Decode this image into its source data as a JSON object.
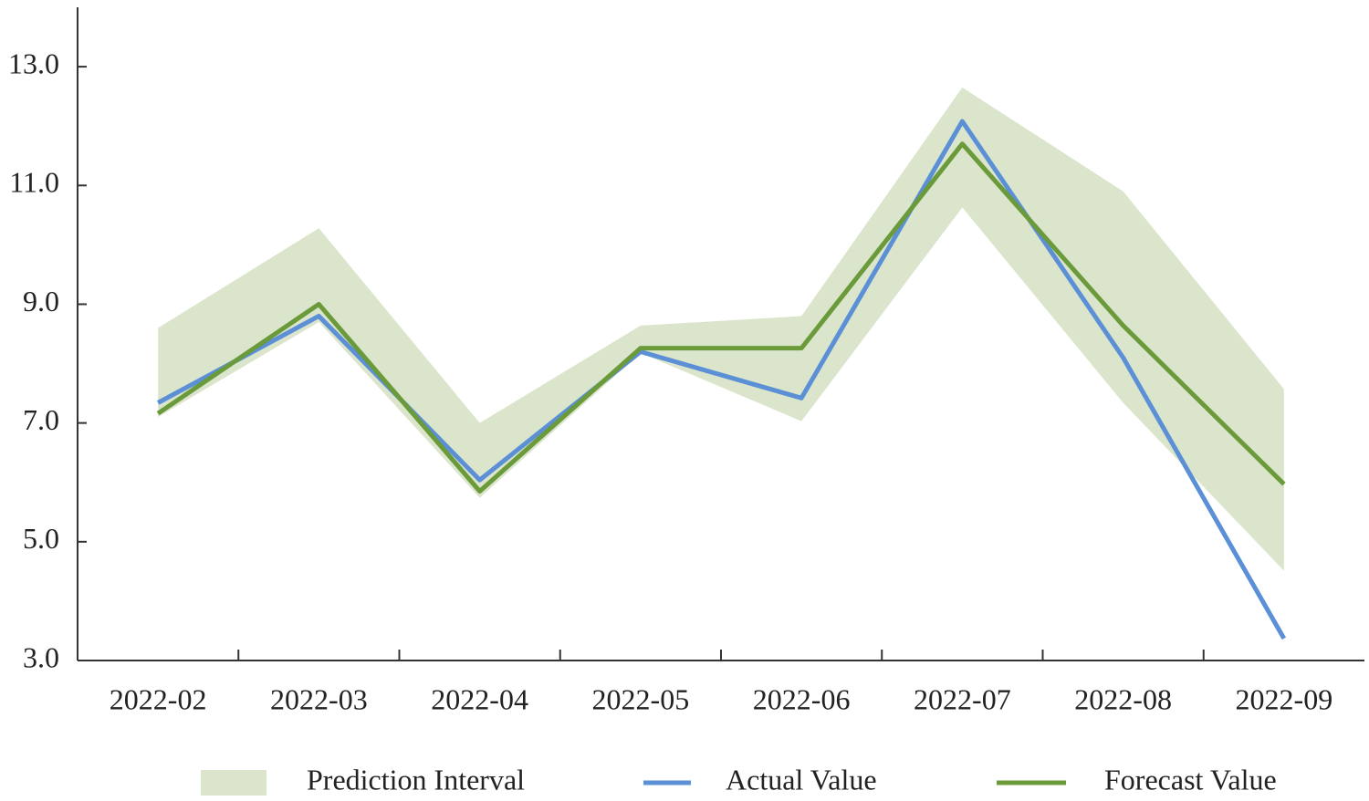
{
  "chart_data": {
    "type": "line",
    "categories": [
      "2022-02",
      "2022-03",
      "2022-04",
      "2022-05",
      "2022-06",
      "2022-07",
      "2022-08",
      "2022-09"
    ],
    "interval": {
      "name": "Prediction Interval",
      "color": "#dbe5cc",
      "lower": [
        7.1,
        8.7,
        5.74,
        8.18,
        7.03,
        10.63,
        7.34,
        4.51
      ],
      "upper": [
        8.6,
        10.28,
        7.0,
        8.64,
        8.8,
        12.65,
        10.9,
        7.57
      ]
    },
    "series": [
      {
        "name": "Actual Value",
        "color": "#5b8fd6",
        "values": [
          7.34,
          8.8,
          6.04,
          8.2,
          7.42,
          12.08,
          8.1,
          3.37
        ]
      },
      {
        "name": "Forecast Value",
        "color": "#6a9a3a",
        "values": [
          7.16,
          9.0,
          5.85,
          8.26,
          8.26,
          11.7,
          8.64,
          5.97
        ]
      }
    ],
    "ylim": [
      3,
      14
    ],
    "yticks": [
      {
        "value": 3,
        "label": "3.0"
      },
      {
        "value": 5,
        "label": "5.0"
      },
      {
        "value": 7,
        "label": "7.0"
      },
      {
        "value": 9,
        "label": "9.0"
      },
      {
        "value": 11,
        "label": "11.0"
      },
      {
        "value": 13,
        "label": "13.0"
      }
    ],
    "legend": "bottom"
  }
}
